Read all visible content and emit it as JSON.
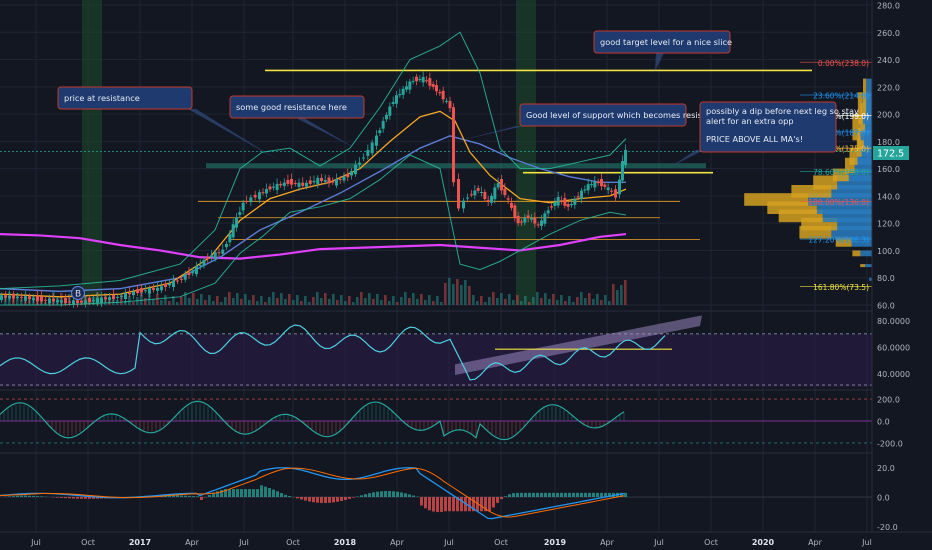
{
  "colors": {
    "background": "#131722",
    "grid": "#1f2433",
    "up_candle": "#26a69a",
    "down_candle": "#ef5350",
    "ma_blue": "#5b7bd5",
    "ma_orange": "#f5a623",
    "ma_magenta": "#e040fb",
    "bollinger": "#2bbf9f",
    "yellow_line": "#f0e442",
    "rsi_line": "#4dd0e1",
    "macd_line": "#2196f3",
    "signal_line": "#ff6d00",
    "annotation_fill": "#1e3a6e",
    "annotation_border": "#c0392b",
    "vp_orange": "#d4a020",
    "vp_blue": "#2a7bbd",
    "price_badge": "#26a69a",
    "axis_text": "#b2b5be"
  },
  "x_axis": {
    "labels": [
      "Jul",
      "Oct",
      "2017",
      "Apr",
      "Jul",
      "Oct",
      "2018",
      "Apr",
      "Jul",
      "Oct",
      "2019",
      "Apr",
      "Jul",
      "Oct",
      "2020",
      "Apr",
      "Jul"
    ]
  },
  "annotations": [
    {
      "text": "price at resistance"
    },
    {
      "text": "some good resistance here"
    },
    {
      "text": "Good level of support which becomes resistance"
    },
    {
      "text": "good target level for a nice slice"
    },
    {
      "text": "possibly a dip before next leg so stay alert for an extra opp"
    },
    {
      "text": "PRICE ABOVE ALL MA's!"
    }
  ],
  "price_badge": "172.5",
  "event_marker": "B",
  "chart_data": [
    {
      "type": "candlestick",
      "panel": "price",
      "y_tick_labels": [
        "280.0",
        "260.0",
        "240.0",
        "220.0",
        "200.0",
        "180.0",
        "160.0",
        "140.0",
        "120.0",
        "100.0",
        "80.0",
        "60.0"
      ],
      "ylim": [
        60,
        280
      ],
      "last_price": 172.5,
      "horizontal_levels": [
        232,
        157,
        136,
        124,
        108
      ],
      "fib_levels": [
        {
          "label": "0.00%(238.0)",
          "value": 238.0
        },
        {
          "label": "23.60%(214.0)",
          "value": 214.0
        },
        {
          "label": "38.20%(199.0)",
          "value": 199.0
        },
        {
          "label": "50.00%(187.0)",
          "value": 187.0
        },
        {
          "label": "61.80%(175.0)",
          "value": 175.0
        },
        {
          "label": "78.60%(158.0)",
          "value": 158.0
        },
        {
          "label": "100.00%(136.0)",
          "value": 136.0
        },
        {
          "label": "127.20%(108.3)",
          "value": 108.3
        },
        {
          "label": "161.80%(73.5)",
          "value": 73.5
        }
      ],
      "shaded_periods": [
        "2016-Aug to 2016-Sep",
        "2018-Nov to 2018-Dec"
      ]
    },
    {
      "type": "line",
      "panel": "rsi",
      "y_tick_labels": [
        "80.0000",
        "60.0000",
        "40.0000"
      ],
      "ylim": [
        30,
        85
      ],
      "overbought": 70,
      "oversold": 30
    },
    {
      "type": "line",
      "panel": "oscillator",
      "y_tick_labels": [
        "200.0",
        "0.0",
        "-200.0"
      ],
      "ylim": [
        -260,
        260
      ]
    },
    {
      "type": "bar",
      "panel": "macd",
      "y_tick_labels": [
        "20.0",
        "0.0",
        "-20.0"
      ],
      "ylim": [
        -24,
        28
      ]
    }
  ]
}
